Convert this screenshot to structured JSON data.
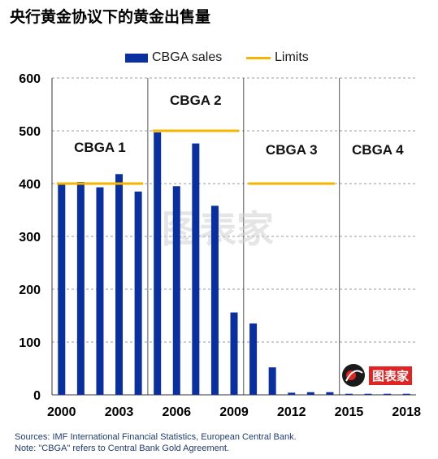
{
  "title": "央行黄金协议下的黄金出售量",
  "legend": {
    "sales_label": "CBGA sales",
    "limits_label": "Limits"
  },
  "colors": {
    "bar": "#0a2f9e",
    "limit": "#f5b400",
    "grid": "#9a9a9a",
    "divider": "#555555",
    "note": "#1f3b73"
  },
  "chart_data": {
    "type": "bar",
    "x": [
      2000,
      2001,
      2002,
      2003,
      2004,
      2005,
      2006,
      2007,
      2008,
      2009,
      2010,
      2011,
      2012,
      2013,
      2014,
      2015,
      2016,
      2017,
      2018
    ],
    "series": [
      {
        "name": "CBGA sales",
        "values": [
          400,
          403,
          393,
          418,
          385,
          497,
          395,
          476,
          358,
          156,
          135,
          52,
          4,
          5,
          5,
          2,
          2,
          2,
          2
        ]
      }
    ],
    "limits": [
      {
        "name": "Limits",
        "value": 400,
        "x_start": 2000,
        "x_end": 2004
      },
      {
        "name": "Limits",
        "value": 500,
        "x_start": 2005,
        "x_end": 2009
      },
      {
        "name": "Limits",
        "value": 400,
        "x_start": 2010,
        "x_end": 2014
      }
    ],
    "periods": [
      {
        "label": "CBGA 1",
        "start": 2000,
        "end": 2004
      },
      {
        "label": "CBGA 2",
        "start": 2005,
        "end": 2009
      },
      {
        "label": "CBGA 3",
        "start": 2010,
        "end": 2014
      },
      {
        "label": "CBGA 4",
        "start": 2015,
        "end": 2018
      }
    ],
    "xticks": [
      2000,
      2003,
      2006,
      2009,
      2012,
      2015,
      2018
    ],
    "yticks": [
      0,
      100,
      200,
      300,
      400,
      500,
      600
    ],
    "ylim": [
      0,
      600
    ],
    "grid": true,
    "legend_position": "top"
  },
  "notes": {
    "sources": "Sources: IMF International Financial Statistics, European Central Bank.",
    "note": "Note: \"CBGA\" refers to Central Bank Gold Agreement."
  },
  "watermark": {
    "text": "图表家"
  }
}
